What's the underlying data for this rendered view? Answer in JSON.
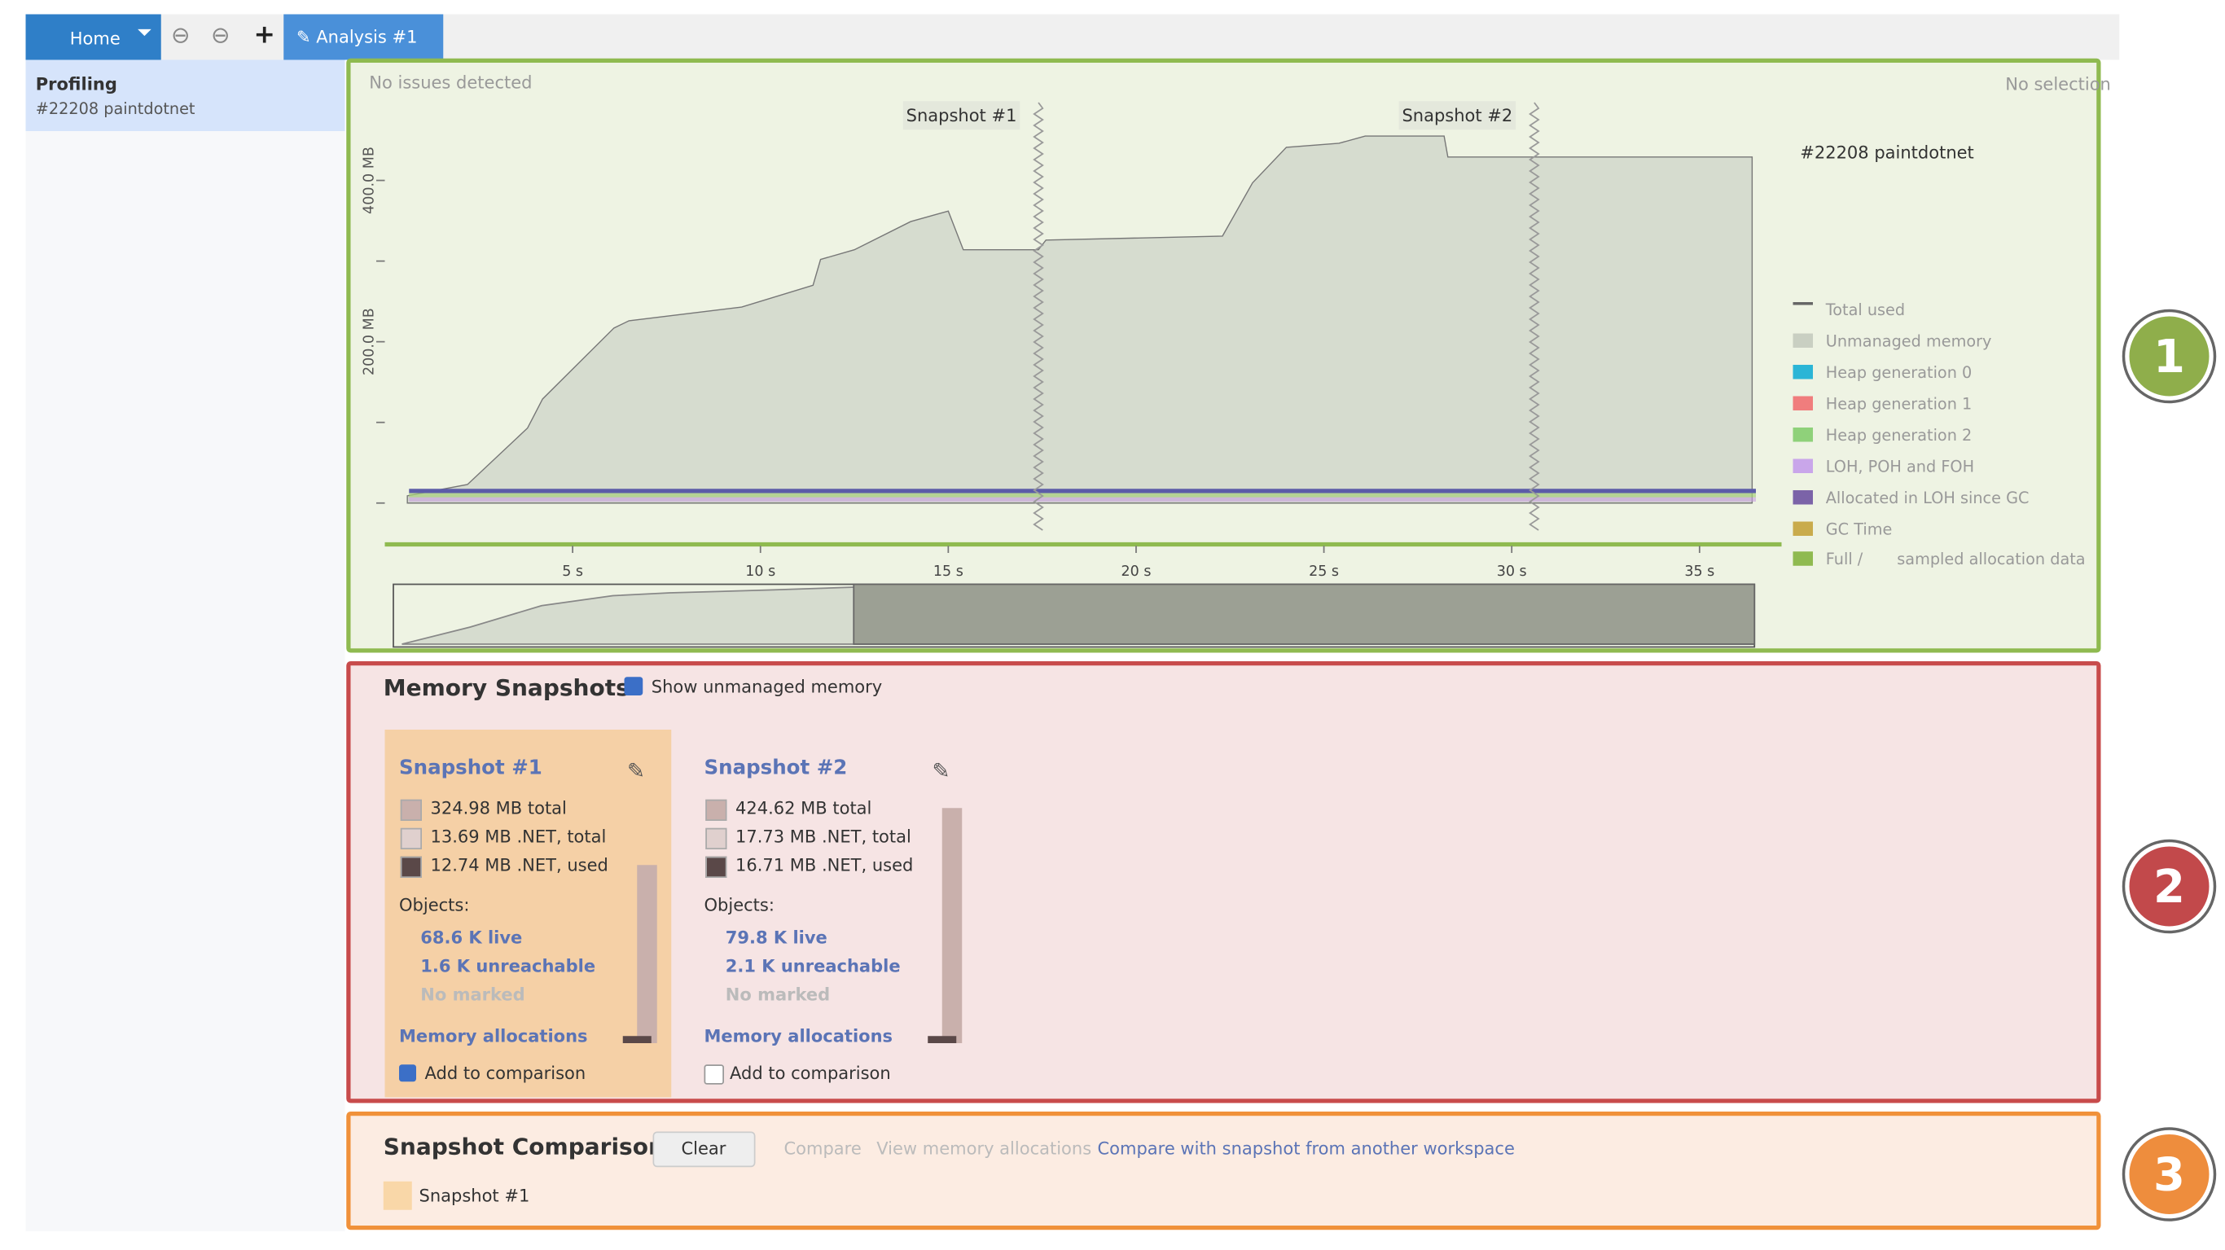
{
  "tabs": {
    "home": "Home",
    "analysis": "Analysis #1"
  },
  "sidebar": {
    "title": "Profiling",
    "subtitle": "#22208 paintdotnet"
  },
  "timeline": {
    "status": "No issues detected",
    "selection": "No selection",
    "process": "#22208 paintdotnet",
    "legend": [
      "Total used",
      "Unmanaged memory",
      "Heap generation 0",
      "Heap generation 1",
      "Heap generation 2",
      "LOH, POH and FOH",
      "Allocated in LOH since GC",
      "GC Time",
      "Full /",
      "sampled allocation data"
    ]
  },
  "chart_data": {
    "type": "area",
    "series": [
      {
        "name": "Total used",
        "color": "#d6dccf",
        "x": [
          0.6,
          2.2,
          3.8,
          4.2,
          6.1,
          6.5,
          9.5,
          11.4,
          11.6,
          12.5,
          14.0,
          15.0,
          15.4,
          17.4,
          17.6,
          22.3,
          23.1,
          24.0,
          25.4,
          26.1,
          28.2,
          28.3,
          36.4
        ],
        "values": [
          9,
          23,
          93,
          129,
          217,
          226,
          243,
          270,
          302,
          314,
          349,
          362,
          314,
          314,
          326,
          331,
          397,
          441,
          446,
          455,
          455,
          429,
          429
        ]
      }
    ],
    "snapshots": [
      {
        "label": "Snapshot #1",
        "time": 17.4
      },
      {
        "label": "Snapshot #2",
        "time": 30.6
      }
    ],
    "xlim": [
      0,
      36.5
    ],
    "ylim": [
      0,
      500
    ],
    "xticks": [
      {
        "value": 5,
        "label": "5 s"
      },
      {
        "value": 10,
        "label": "10 s"
      },
      {
        "value": 15,
        "label": "15 s"
      },
      {
        "value": 20,
        "label": "20 s"
      },
      {
        "value": 25,
        "label": "25 s"
      },
      {
        "value": 30,
        "label": "30 s"
      },
      {
        "value": 35,
        "label": "35 s"
      }
    ],
    "yticks": [
      {
        "value": 0,
        "label": ""
      },
      {
        "value": 100,
        "label": ""
      },
      {
        "value": 200,
        "label": "200.0 MB"
      },
      {
        "value": 300,
        "label": ""
      },
      {
        "value": 400,
        "label": "400.0 MB"
      }
    ]
  },
  "snapshots": {
    "title": "Memory Snapshots",
    "show_unmanaged": "Show unmanaged memory",
    "cards": [
      {
        "title": "Snapshot #1",
        "total": "324.98 MB total",
        "net_total": "13.69 MB .NET, total",
        "net_used": "12.74 MB .NET, used",
        "objects": "Objects:",
        "live": "68.6 K live",
        "unreachable": "1.6 K unreachable",
        "marked": "No marked",
        "allocations": "Memory allocations",
        "compare": "Add to comparison"
      },
      {
        "title": "Snapshot #2",
        "total": "424.62 MB total",
        "net_total": "17.73 MB .NET, total",
        "net_used": "16.71 MB .NET, used",
        "objects": "Objects:",
        "live": "79.8 K live",
        "unreachable": "2.1 K unreachable",
        "marked": "No marked",
        "allocations": "Memory allocations",
        "compare": "Add to comparison"
      }
    ]
  },
  "comparison": {
    "title": "Snapshot Comparison",
    "clear": "Clear",
    "compare": "Compare",
    "view": "View memory allocations",
    "other": "Compare with snapshot from another workspace",
    "item": "Snapshot #1"
  },
  "badges": [
    "1",
    "2",
    "3"
  ]
}
